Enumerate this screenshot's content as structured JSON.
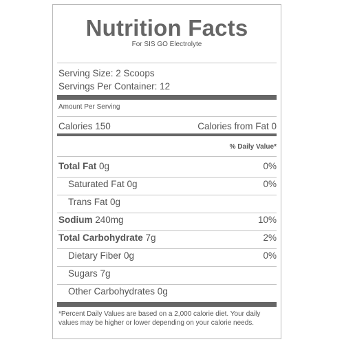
{
  "label": {
    "title": "Nutrition Facts",
    "subtitle": "For SIS GO Electrolyte",
    "serving_size": "Serving Size: 2 Scoops",
    "servings_per_container": "Servings Per Container: 12",
    "amount_per_serving": "Amount Per Serving",
    "calories": "Calories 150",
    "calories_from_fat": "Calories from Fat 0",
    "daily_value_header": "% Daily Value*",
    "nutrients": [
      {
        "name": "Total Fat",
        "amount": " 0g",
        "dv": "0%"
      },
      {
        "name": "Saturated Fat 0g",
        "amount": "",
        "dv": "0%"
      },
      {
        "name": "Trans Fat 0g",
        "amount": "",
        "dv": ""
      },
      {
        "name": "Sodium",
        "amount": " 240mg",
        "dv": "10%"
      },
      {
        "name": "Total Carbohydrate",
        "amount": " 7g",
        "dv": "2%"
      },
      {
        "name": "Dietary Fiber 0g",
        "amount": "",
        "dv": "0%"
      },
      {
        "name": "Sugars 7g",
        "amount": "",
        "dv": ""
      },
      {
        "name": "Other Carbohydrates 0g",
        "amount": "",
        "dv": ""
      }
    ],
    "footnote": "*Percent Daily Values are based on a 2,000 calorie diet. Your daily values may be higher or lower depending on your calorie needs."
  }
}
